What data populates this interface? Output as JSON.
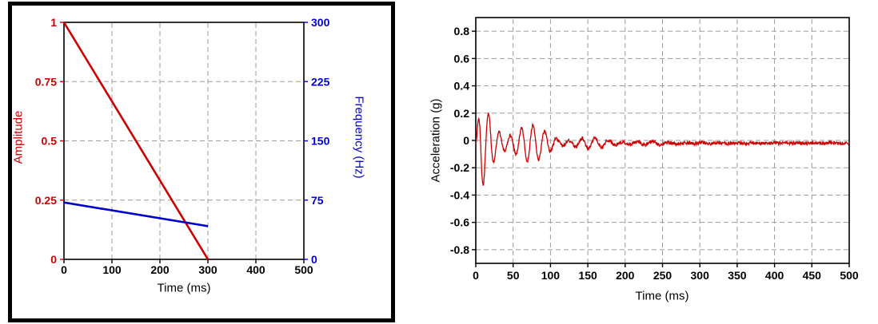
{
  "page": {
    "background": "#ffffff"
  },
  "chart_data": [
    {
      "id": "sweep-profile",
      "type": "line",
      "frame": "thick-black-border",
      "title": "",
      "xlabel": "Time (ms)",
      "xlim": [
        0,
        500
      ],
      "xticks": [
        0,
        100,
        200,
        300,
        400,
        500
      ],
      "grid": true,
      "left_axis": {
        "label": "Amplitude",
        "color": "#cc0000",
        "lim": [
          0,
          1
        ],
        "ticks": [
          0,
          0.25,
          0.5,
          0.75,
          1
        ]
      },
      "right_axis": {
        "label": "Frequency (Hz)",
        "color": "#0000cc",
        "lim": [
          0,
          300
        ],
        "ticks": [
          0,
          75,
          150,
          225,
          300
        ]
      },
      "series": [
        {
          "name": "amplitude",
          "axis": "left",
          "color": "#cc0000",
          "points": [
            [
              0,
              1
            ],
            [
              300,
              0
            ]
          ]
        },
        {
          "name": "frequency",
          "axis": "right",
          "color": "#0000cc",
          "points": [
            [
              0,
              72
            ],
            [
              300,
              42
            ]
          ]
        }
      ]
    },
    {
      "id": "acceleration-response",
      "type": "line",
      "title": "",
      "xlabel": "Time (ms)",
      "ylabel": "Acceleration (g)",
      "xlim": [
        0,
        500
      ],
      "ylim": [
        -0.9,
        0.9
      ],
      "xticks": [
        0,
        50,
        100,
        150,
        200,
        250,
        300,
        350,
        400,
        450,
        500
      ],
      "yticks": [
        -0.8,
        -0.6,
        -0.4,
        -0.2,
        0,
        0.2,
        0.4,
        0.6,
        0.8
      ],
      "grid": true,
      "line_color": "#cc0000",
      "signal": {
        "description": "Decaying oscillatory acceleration burst: peaks ~ +0.3 / -0.3 g near 10 ms, beat-like bursts while decaying, settles to ~ -0.02 g baseline with small noise after ~250 ms",
        "peak_g": 0.36,
        "observed_max_g": 0.3,
        "observed_min_g": -0.3,
        "rise_ms": 7,
        "decay_tau_ms": 70,
        "beat_period_ms": 80,
        "freq_start_hz": 72,
        "freq_end_hz": 42,
        "baseline_g": -0.02,
        "noise_g": 0.012,
        "settle_time_ms": 250,
        "sample_step_ms": 0.5
      }
    }
  ]
}
